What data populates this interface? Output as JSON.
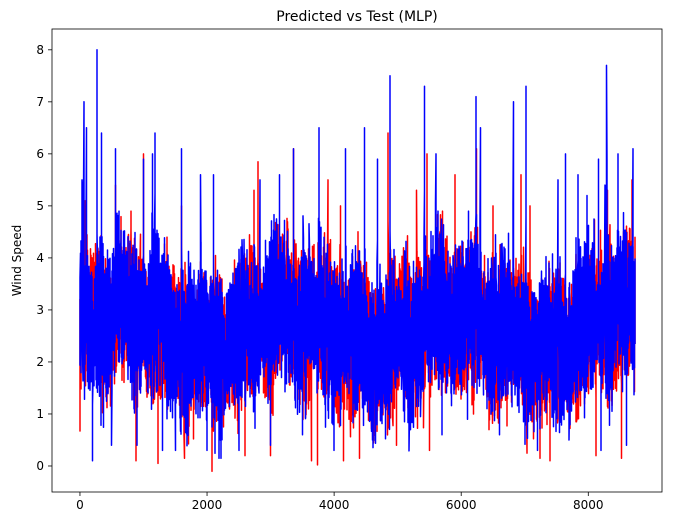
{
  "chart_data": {
    "type": "line",
    "title": "Predicted vs Test (MLP)",
    "xlabel": "",
    "ylabel": "Wind Speed",
    "xlim": [
      -440,
      9160
    ],
    "ylim": [
      -0.5,
      8.4
    ],
    "xticks": [
      0,
      2000,
      4000,
      6000,
      8000
    ],
    "yticks": [
      0,
      1,
      2,
      3,
      4,
      5,
      6,
      7,
      8
    ],
    "grid": false,
    "legend": "none",
    "n_points": 8740,
    "series": [
      {
        "color": "#ff0000",
        "peaks": [
          [
            80,
            5.1
          ],
          [
            560,
            5.4
          ],
          [
            1000,
            6.0
          ],
          [
            1600,
            5.0
          ],
          [
            2740,
            5.3
          ],
          [
            2800,
            5.85
          ],
          [
            3360,
            6.1
          ],
          [
            3900,
            5.5
          ],
          [
            4100,
            5.0
          ],
          [
            4850,
            6.4
          ],
          [
            5300,
            5.3
          ],
          [
            5460,
            6.0
          ],
          [
            5900,
            5.6
          ],
          [
            6240,
            6.1
          ],
          [
            6500,
            5.0
          ],
          [
            6940,
            5.6
          ],
          [
            7080,
            5.0
          ],
          [
            7400,
            5.1
          ],
          [
            8300,
            5.3
          ],
          [
            8690,
            5.5
          ]
        ],
        "troughs": [
          [
            880,
            0.1
          ],
          [
            1230,
            0.05
          ],
          [
            2080,
            -0.1
          ],
          [
            2600,
            0.2
          ],
          [
            3000,
            0.2
          ],
          [
            3640,
            0.1
          ],
          [
            3740,
            0.02
          ],
          [
            4150,
            0.1
          ],
          [
            4400,
            0.15
          ],
          [
            4980,
            0.4
          ],
          [
            5500,
            0.3
          ],
          [
            7240,
            0.15
          ],
          [
            7400,
            0.1
          ],
          [
            8120,
            0.2
          ],
          [
            8520,
            0.15
          ]
        ]
      },
      {
        "color": "#0000ff",
        "peaks": [
          [
            30,
            5.5
          ],
          [
            60,
            7.0
          ],
          [
            100,
            6.5
          ],
          [
            270,
            8.0
          ],
          [
            340,
            6.4
          ],
          [
            560,
            6.1
          ],
          [
            1000,
            5.9
          ],
          [
            1140,
            6.0
          ],
          [
            1180,
            6.4
          ],
          [
            1600,
            6.1
          ],
          [
            1900,
            5.6
          ],
          [
            2100,
            5.6
          ],
          [
            2500,
            5.5
          ],
          [
            2830,
            5.5
          ],
          [
            3140,
            5.6
          ],
          [
            3360,
            6.1
          ],
          [
            3760,
            6.5
          ],
          [
            4000,
            6.2
          ],
          [
            4180,
            6.1
          ],
          [
            4480,
            6.5
          ],
          [
            4680,
            5.9
          ],
          [
            4880,
            7.5
          ],
          [
            5420,
            7.3
          ],
          [
            5600,
            6.0
          ],
          [
            6230,
            7.1
          ],
          [
            6300,
            6.5
          ],
          [
            6820,
            7.0
          ],
          [
            7020,
            7.3
          ],
          [
            7520,
            5.5
          ],
          [
            7640,
            6.0
          ],
          [
            7840,
            5.6
          ],
          [
            7980,
            5.2
          ],
          [
            8160,
            5.9
          ],
          [
            8260,
            5.4
          ],
          [
            8290,
            7.7
          ],
          [
            8470,
            6.0
          ],
          [
            8700,
            6.1
          ]
        ],
        "troughs": [
          [
            10,
            2.0
          ],
          [
            200,
            0.1
          ],
          [
            500,
            0.4
          ],
          [
            900,
            0.4
          ],
          [
            1300,
            0.3
          ],
          [
            1500,
            0.3
          ],
          [
            2000,
            0.3
          ],
          [
            2500,
            0.3
          ],
          [
            3000,
            0.4
          ],
          [
            3500,
            0.6
          ],
          [
            4000,
            0.3
          ],
          [
            4600,
            0.5
          ],
          [
            5200,
            0.7
          ],
          [
            5700,
            0.6
          ],
          [
            6100,
            0.9
          ],
          [
            6600,
            0.6
          ],
          [
            7200,
            0.3
          ],
          [
            7700,
            0.5
          ],
          [
            8200,
            0.3
          ],
          [
            8600,
            0.4
          ]
        ]
      }
    ]
  }
}
